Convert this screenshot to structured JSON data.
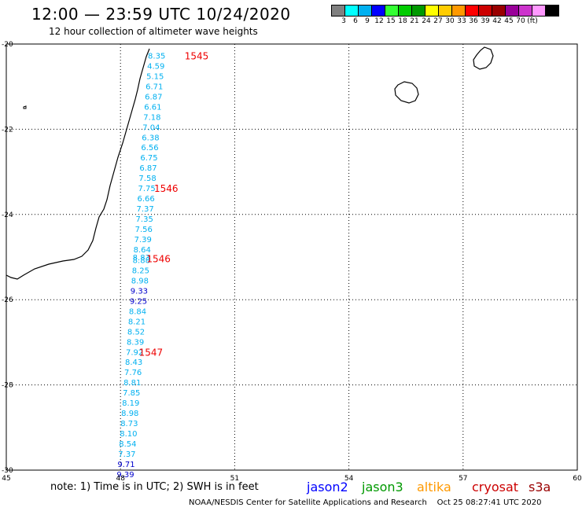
{
  "header": {
    "title": "12:00 — 23:59 UTC 10/24/2020",
    "subtitle": "12 hour collection of altimeter wave heights"
  },
  "legend": {
    "colors": [
      "#808080",
      "#00ffff",
      "#00b0f0",
      "#0000ff",
      "#33ff33",
      "#00cc00",
      "#009900",
      "#ffff00",
      "#ffcc00",
      "#ff9900",
      "#ff0000",
      "#cc0000",
      "#990000",
      "#990099",
      "#cc33cc",
      "#ff99ff",
      "#000000"
    ],
    "labels": [
      "3",
      "6",
      "9",
      "12",
      "15",
      "18",
      "21",
      "24",
      "27",
      "30",
      "33",
      "36",
      "39",
      "42",
      "45",
      "70",
      "(ft)"
    ]
  },
  "map": {
    "lon_range": [
      45,
      60
    ],
    "lat_range": [
      -30,
      -20
    ],
    "lon_ticks": [
      "45",
      "48",
      "51",
      "54",
      "57",
      "60"
    ],
    "lat_ticks": [
      "-20",
      "-22",
      "-24",
      "-26",
      "-28",
      "-30"
    ],
    "wave_points": [
      {
        "lon": 48.95,
        "lat": -20.27,
        "value": "8.35",
        "color": "#00b0f0"
      },
      {
        "lon": 48.93,
        "lat": -20.51,
        "value": "4.59",
        "color": "#00b0f0"
      },
      {
        "lon": 48.91,
        "lat": -20.75,
        "value": "5.15",
        "color": "#00b0f0"
      },
      {
        "lon": 48.89,
        "lat": -20.99,
        "value": "6.71",
        "color": "#00b0f0"
      },
      {
        "lon": 48.87,
        "lat": -21.23,
        "value": "6.87",
        "color": "#00b0f0"
      },
      {
        "lon": 48.85,
        "lat": -21.47,
        "value": "6.61",
        "color": "#00b0f0"
      },
      {
        "lon": 48.83,
        "lat": -21.71,
        "value": "7.18",
        "color": "#00b0f0"
      },
      {
        "lon": 48.81,
        "lat": -21.95,
        "value": "7.04",
        "color": "#00b0f0"
      },
      {
        "lon": 48.79,
        "lat": -22.19,
        "value": "6.38",
        "color": "#00b0f0"
      },
      {
        "lon": 48.77,
        "lat": -22.42,
        "value": "6.56",
        "color": "#00b0f0"
      },
      {
        "lon": 48.75,
        "lat": -22.66,
        "value": "6.75",
        "color": "#00b0f0"
      },
      {
        "lon": 48.73,
        "lat": -22.9,
        "value": "6.87",
        "color": "#00b0f0"
      },
      {
        "lon": 48.71,
        "lat": -23.14,
        "value": "7.58",
        "color": "#00b0f0"
      },
      {
        "lon": 48.69,
        "lat": -23.38,
        "value": "7.75",
        "color": "#00b0f0"
      },
      {
        "lon": 48.67,
        "lat": -23.62,
        "value": "6.66",
        "color": "#00b0f0"
      },
      {
        "lon": 48.65,
        "lat": -23.86,
        "value": "7.37",
        "color": "#00b0f0"
      },
      {
        "lon": 48.63,
        "lat": -24.1,
        "value": "7.35",
        "color": "#00b0f0"
      },
      {
        "lon": 48.61,
        "lat": -24.34,
        "value": "7.56",
        "color": "#00b0f0"
      },
      {
        "lon": 48.59,
        "lat": -24.58,
        "value": "7.39",
        "color": "#00b0f0"
      },
      {
        "lon": 48.57,
        "lat": -24.82,
        "value": "8.64",
        "color": "#00b0f0"
      },
      {
        "lon": 48.55,
        "lat": -25.0,
        "value": "8.83",
        "color": "#00b0f0"
      },
      {
        "lon": 48.55,
        "lat": -25.06,
        "value": "8.88",
        "color": "#00b0f0"
      },
      {
        "lon": 48.53,
        "lat": -25.3,
        "value": "8.25",
        "color": "#00b0f0"
      },
      {
        "lon": 48.51,
        "lat": -25.54,
        "value": "8.98",
        "color": "#00b0f0"
      },
      {
        "lon": 48.49,
        "lat": -25.78,
        "value": "9.33",
        "color": "#0000cc"
      },
      {
        "lon": 48.47,
        "lat": -26.02,
        "value": "9.25",
        "color": "#0000cc"
      },
      {
        "lon": 48.45,
        "lat": -26.26,
        "value": "8.84",
        "color": "#00b0f0"
      },
      {
        "lon": 48.43,
        "lat": -26.5,
        "value": "8.21",
        "color": "#00b0f0"
      },
      {
        "lon": 48.41,
        "lat": -26.74,
        "value": "8.52",
        "color": "#00b0f0"
      },
      {
        "lon": 48.39,
        "lat": -26.98,
        "value": "8.39",
        "color": "#00b0f0"
      },
      {
        "lon": 48.37,
        "lat": -27.22,
        "value": "7.92",
        "color": "#00b0f0"
      },
      {
        "lon": 48.35,
        "lat": -27.45,
        "value": "8.43",
        "color": "#00b0f0"
      },
      {
        "lon": 48.33,
        "lat": -27.69,
        "value": "7.76",
        "color": "#00b0f0"
      },
      {
        "lon": 48.31,
        "lat": -27.93,
        "value": "8.81",
        "color": "#00b0f0"
      },
      {
        "lon": 48.29,
        "lat": -28.17,
        "value": "7.85",
        "color": "#00b0f0"
      },
      {
        "lon": 48.27,
        "lat": -28.41,
        "value": "8.19",
        "color": "#00b0f0"
      },
      {
        "lon": 48.25,
        "lat": -28.65,
        "value": "8.98",
        "color": "#00b0f0"
      },
      {
        "lon": 48.23,
        "lat": -28.89,
        "value": "8.73",
        "color": "#00b0f0"
      },
      {
        "lon": 48.21,
        "lat": -29.13,
        "value": "8.10",
        "color": "#00b0f0"
      },
      {
        "lon": 48.19,
        "lat": -29.37,
        "value": "8.54",
        "color": "#00b0f0"
      },
      {
        "lon": 48.17,
        "lat": -29.61,
        "value": "7.37",
        "color": "#00b0f0"
      },
      {
        "lon": 48.15,
        "lat": -29.85,
        "value": "9.71",
        "color": "#0000cc"
      },
      {
        "lon": 48.13,
        "lat": -30.09,
        "value": "9.39",
        "color": "#0000cc"
      }
    ],
    "time_labels": [
      {
        "lon": 50.0,
        "lat": -20.27,
        "text": "1545"
      },
      {
        "lon": 49.2,
        "lat": -23.38,
        "text": "1546"
      },
      {
        "lon": 49.0,
        "lat": -25.03,
        "text": "1546"
      },
      {
        "lon": 48.8,
        "lat": -27.22,
        "text": "1547"
      }
    ],
    "label_color": "#ee0000"
  },
  "note": "note: 1) Time is in UTC; 2) SWH is in feet",
  "satellites": [
    {
      "name": "jason2",
      "color": "#0000ff"
    },
    {
      "name": "jason3",
      "color": "#009900"
    },
    {
      "name": "altika",
      "color": "#ff9900"
    },
    {
      "name": "cryosat",
      "color": "#cc0000"
    },
    {
      "name": "s3a",
      "color": "#990000"
    }
  ],
  "footer": {
    "center": "NOAA/NESDIS Center for Satellite Applications and Research",
    "timestamp": "Oct 25 08:27:41 UTC 2020"
  }
}
